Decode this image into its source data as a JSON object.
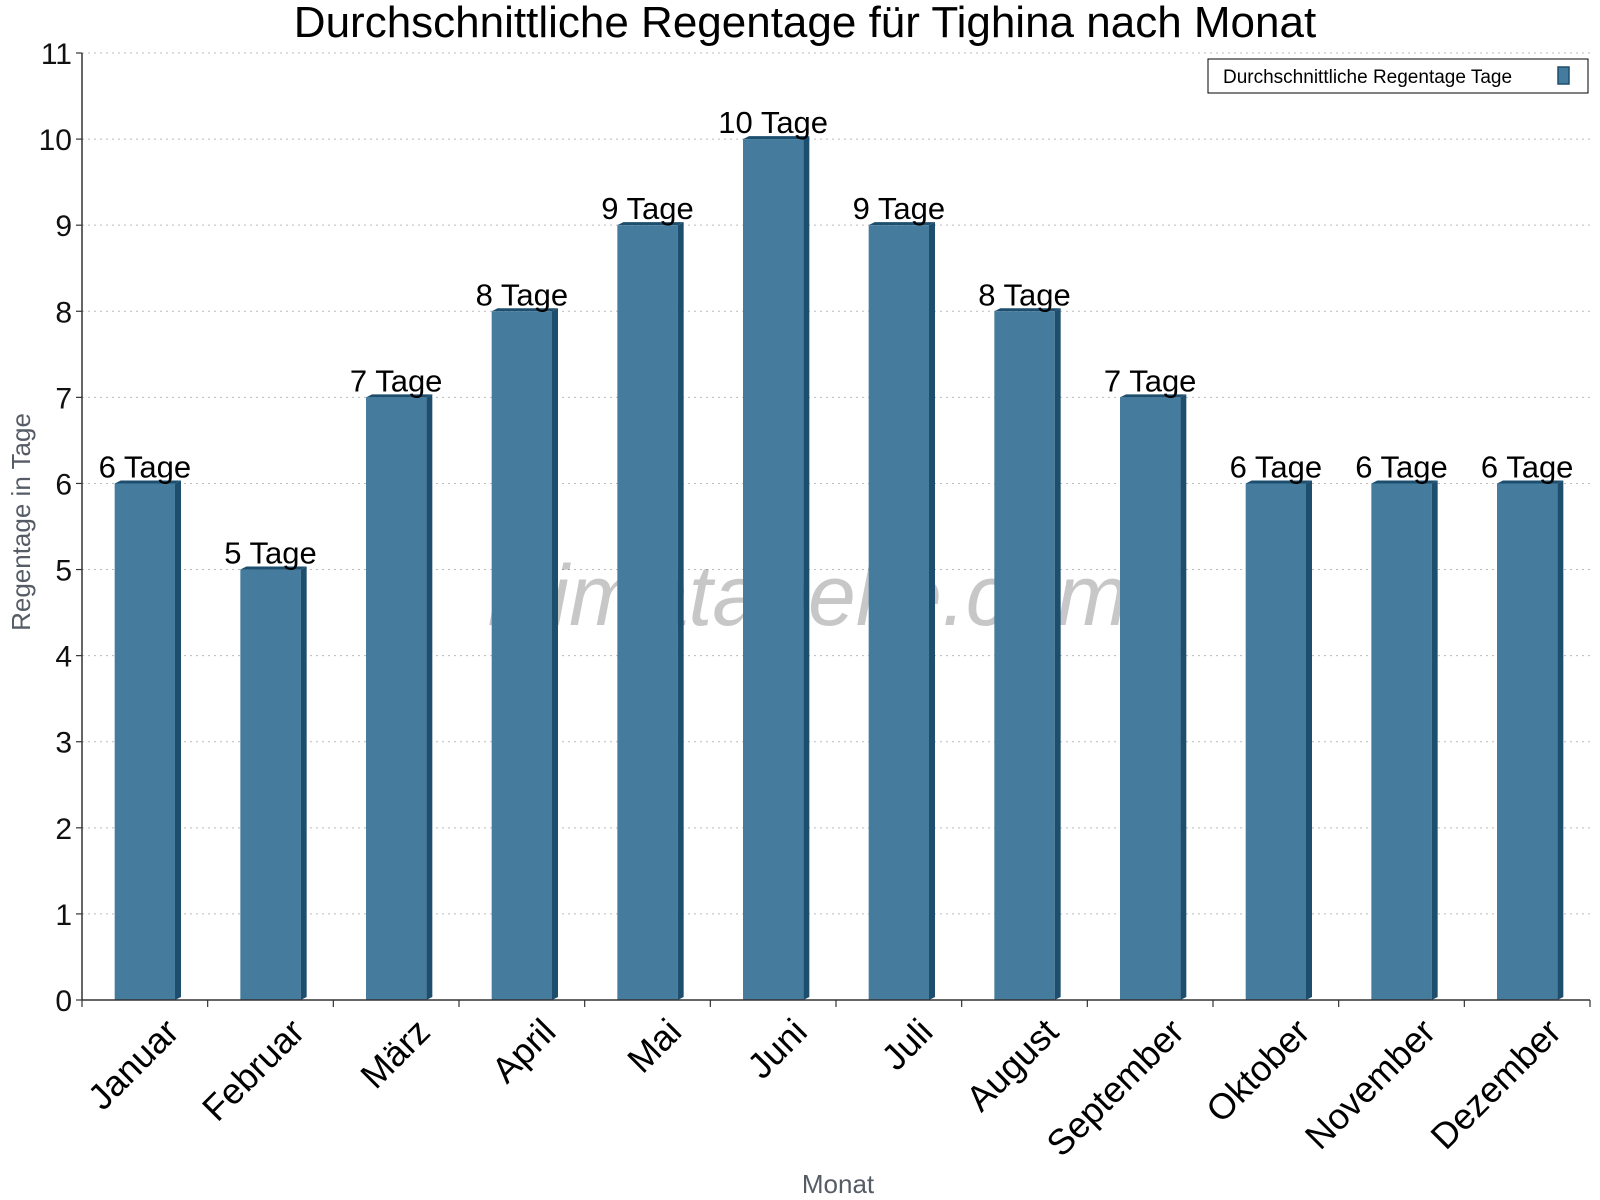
{
  "chart_data": {
    "type": "bar",
    "title": "Durchschnittliche Regentage für Tighina nach Monat",
    "xlabel": "Monat",
    "ylabel": "Regentage in Tage",
    "ylim": [
      0,
      11
    ],
    "yticks": [
      0,
      1,
      2,
      3,
      4,
      5,
      6,
      7,
      8,
      9,
      10,
      11
    ],
    "grid": true,
    "legend_position": "top-right",
    "categories": [
      "Januar",
      "Februar",
      "März",
      "April",
      "Mai",
      "Juni",
      "Juli",
      "August",
      "September",
      "Oktober",
      "November",
      "Dezember"
    ],
    "series": [
      {
        "name": "Durchschnittliche Regentage Tage",
        "values": [
          6,
          5,
          7,
          8,
          9,
          10,
          9,
          8,
          7,
          6,
          6,
          6
        ],
        "data_labels": [
          "6 Tage",
          "5 Tage",
          "7 Tage",
          "8 Tage",
          "9 Tage",
          "10 Tage",
          "9 Tage",
          "8 Tage",
          "7 Tage",
          "6 Tage",
          "6 Tage",
          "6 Tage"
        ],
        "color": "#457b9d",
        "side_color": "#1d4e6e"
      }
    ]
  },
  "watermark": "klimatabelle.com"
}
